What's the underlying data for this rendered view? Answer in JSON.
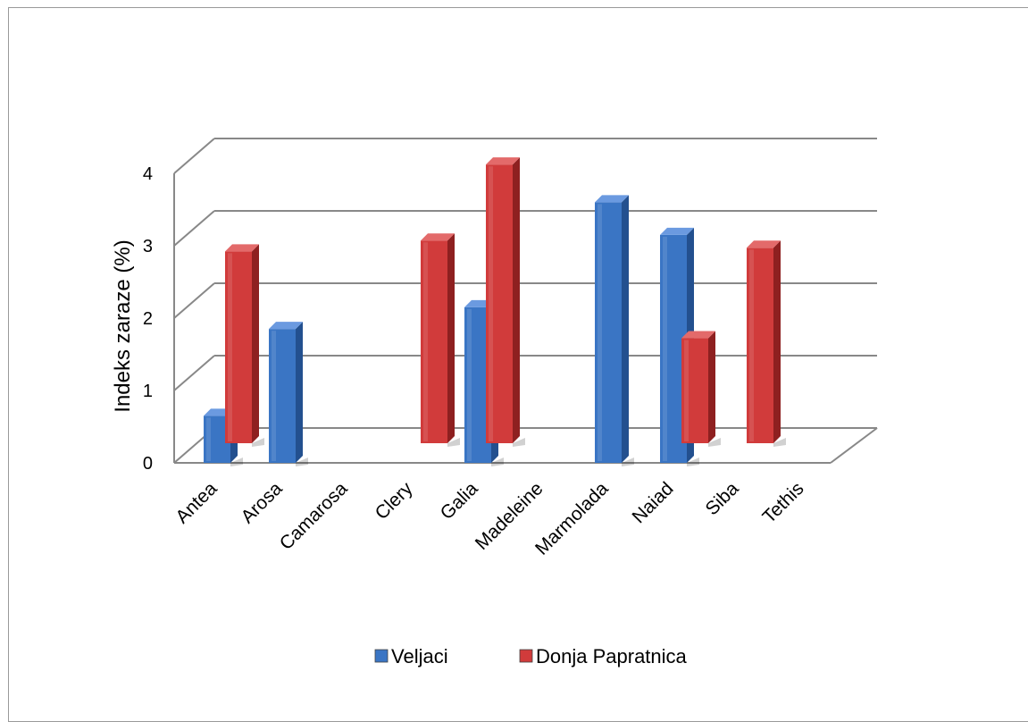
{
  "chart_data": {
    "type": "bar",
    "title": "",
    "xlabel": "",
    "ylabel": "Indeks zaraze (%)",
    "ylim": [
      0,
      4
    ],
    "yticks": [
      "0",
      "1",
      "2",
      "3",
      "4"
    ],
    "categories": [
      "Antea",
      "Arosa",
      "Camarosa",
      "Clery",
      "Galia",
      "Madeleine",
      "Marmolada",
      "Naiad",
      "Siba",
      "Tethis"
    ],
    "series": [
      {
        "name": "Veljaci",
        "values": [
          0.65,
          1.85,
          null,
          null,
          2.15,
          null,
          3.6,
          3.15,
          null,
          null
        ]
      },
      {
        "name": "Donja Papratnica",
        "values": [
          2.65,
          null,
          null,
          2.8,
          3.85,
          null,
          null,
          1.45,
          2.7,
          null
        ]
      }
    ],
    "grid": true,
    "legend_position": "bottom",
    "colors": {
      "veljaci_front": "#3a75c4",
      "veljaci_side": "#23508f",
      "veljaci_top": "#6b9ae0",
      "donja_front": "#d13b3b",
      "donja_side": "#8e2020",
      "donja_top": "#e36a6a",
      "grid": "#888888"
    }
  }
}
